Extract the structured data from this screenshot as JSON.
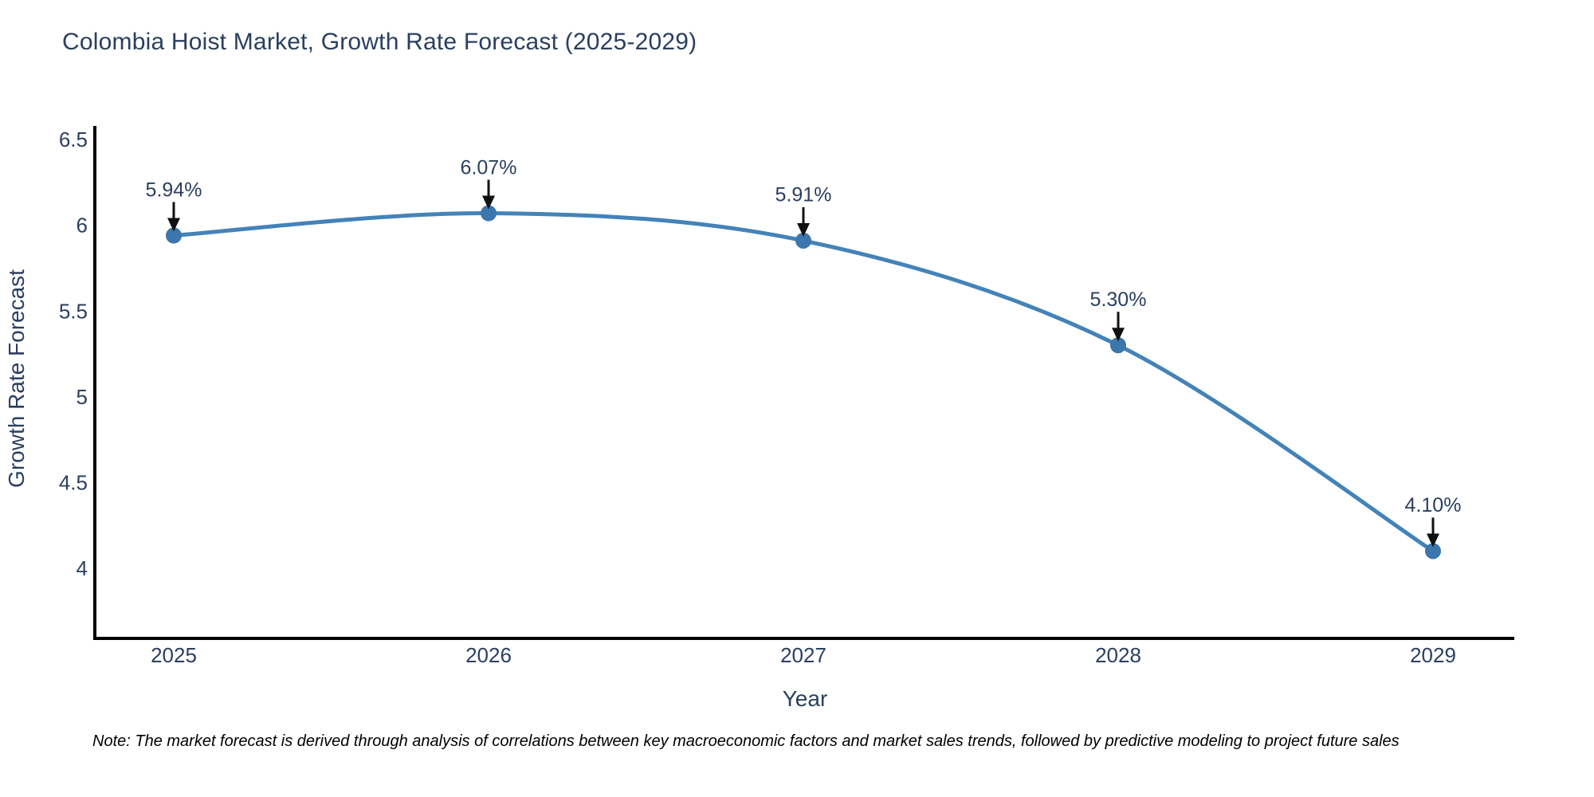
{
  "page": {
    "note": "Note: The market forecast is derived through analysis of correlations between key macroeconomic factors and market sales trends, followed by predictive modeling to project future sales"
  },
  "chart_data": {
    "type": "line",
    "title": "Colombia Hoist Market, Growth Rate Forecast (2025-2029)",
    "x": [
      2025,
      2026,
      2027,
      2028,
      2029
    ],
    "values": [
      5.94,
      6.07,
      5.91,
      5.3,
      4.1
    ],
    "point_labels": [
      "5.94%",
      "6.07%",
      "5.91%",
      "5.30%",
      "4.10%"
    ],
    "xlabel": "Year",
    "ylabel": "Growth Rate Forecast",
    "yticks": [
      4,
      4.5,
      5,
      5.5,
      6,
      6.5
    ],
    "ylim": [
      3.6,
      6.57
    ],
    "line_shape": "spline",
    "grid": false,
    "legend": "none",
    "annotations": "value labels above each point with downward arrows",
    "colors": {
      "line": "#4383b8",
      "marker": "#3b76ac",
      "axis": "#000000",
      "arrow": "#111111",
      "text": "#2a3f5f",
      "note_text": "#000000",
      "background": "#ffffff"
    }
  }
}
